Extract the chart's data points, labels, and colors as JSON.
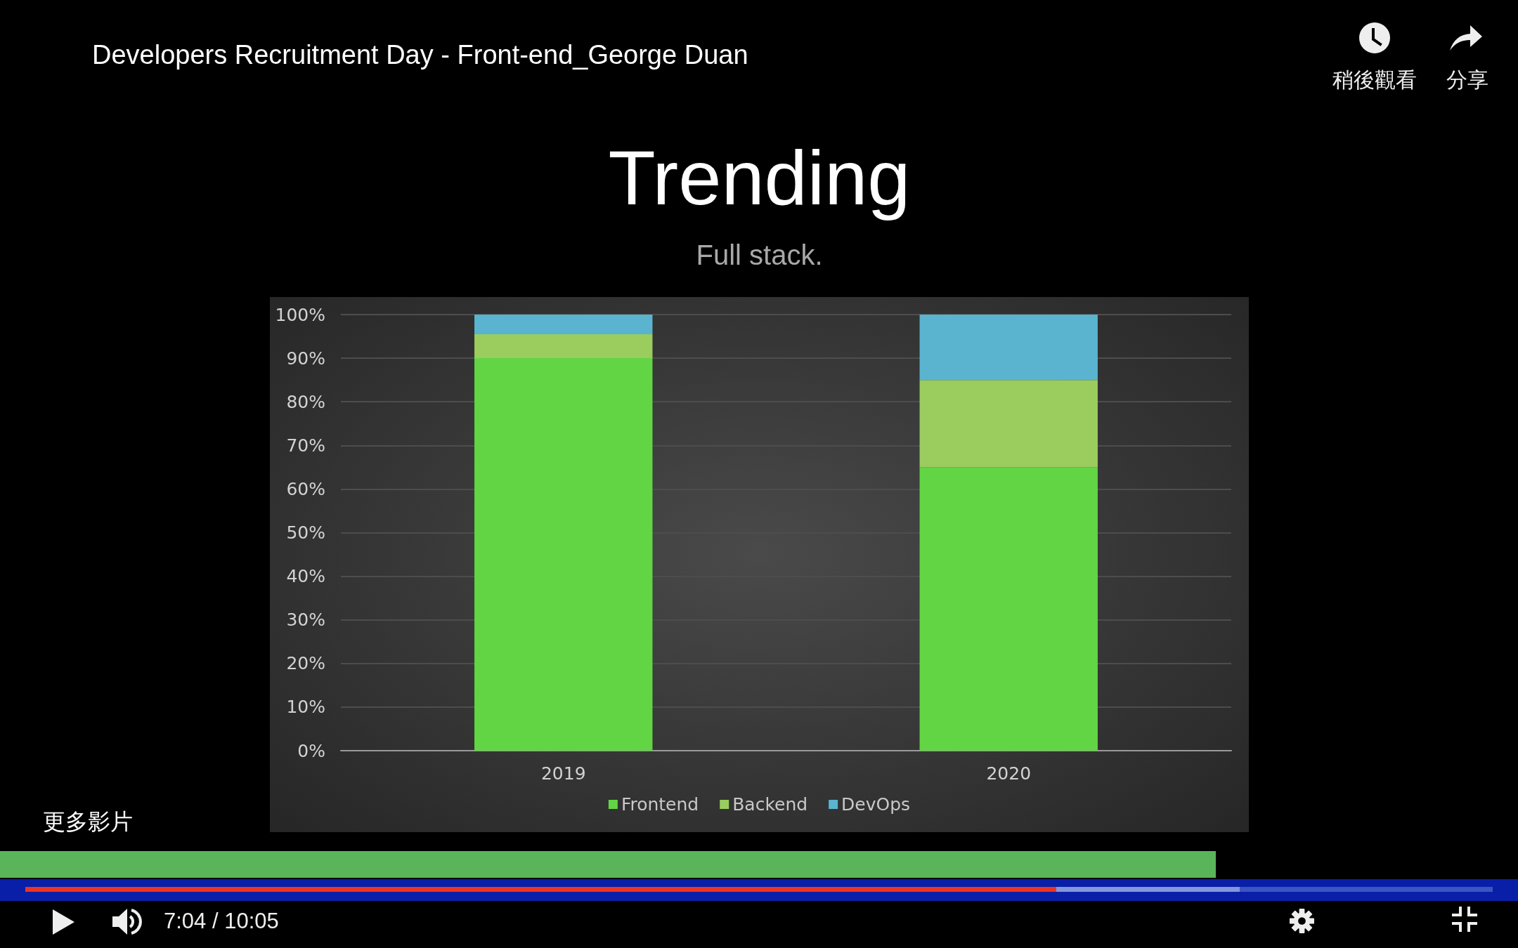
{
  "chart_data": {
    "type": "bar",
    "title": "Trending",
    "subtitle": "Full stack.",
    "categories": [
      "2019",
      "2020"
    ],
    "series": [
      {
        "name": "Frontend",
        "color": "#62d544",
        "values": [
          90,
          65
        ]
      },
      {
        "name": "Backend",
        "color": "#9acd5e",
        "values": [
          5.5,
          20
        ]
      },
      {
        "name": "DevOps",
        "color": "#5ab4cf",
        "values": [
          4.5,
          15
        ]
      }
    ],
    "stacked": true,
    "ylim": [
      0,
      100
    ],
    "yticks": [
      {
        "value": 0,
        "label": "0%"
      },
      {
        "value": 10,
        "label": "10%"
      },
      {
        "value": 20,
        "label": "20%"
      },
      {
        "value": 30,
        "label": "30%"
      },
      {
        "value": 40,
        "label": "40%"
      },
      {
        "value": 50,
        "label": "50%"
      },
      {
        "value": 60,
        "label": "60%"
      },
      {
        "value": 70,
        "label": "70%"
      },
      {
        "value": 80,
        "label": "80%"
      },
      {
        "value": 90,
        "label": "90%"
      },
      {
        "value": 100,
        "label": "100%"
      }
    ],
    "grid": "y",
    "legend": "bottom",
    "annotations": [
      "Developers Recruitment Day - Front-end_George Duan",
      "稍後觀看",
      "分享",
      "更多影片",
      "7:04 / 10:05"
    ]
  }
}
